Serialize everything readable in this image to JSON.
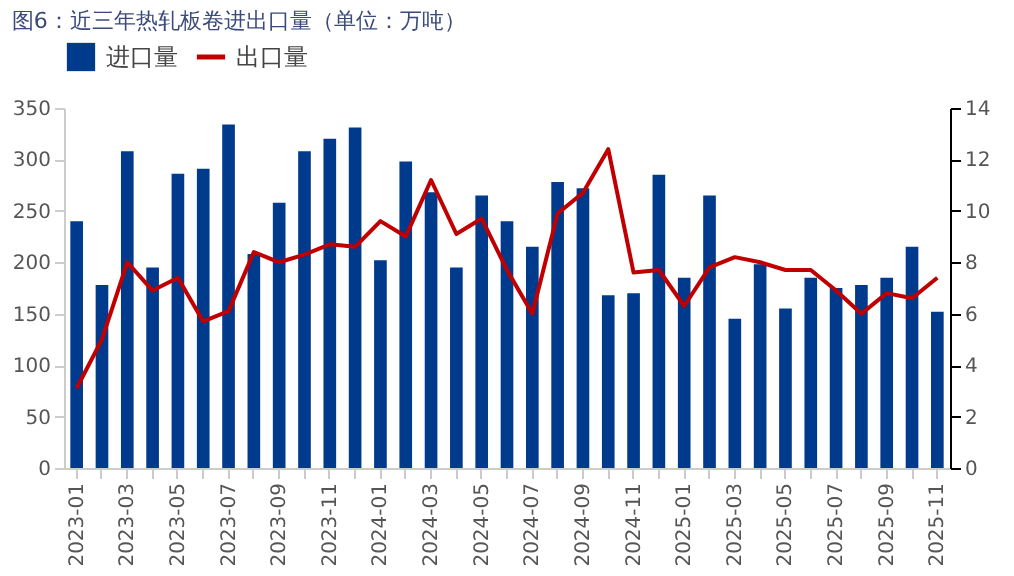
{
  "chart_data": {
    "type": "bar",
    "title": "图6：近三年热轧板卷进出口量（单位：万吨）",
    "categories": [
      "2023-01",
      null,
      "2023-03",
      null,
      "2023-05",
      null,
      "2023-07",
      null,
      "2023-09",
      null,
      "2023-11",
      null,
      "2024-01",
      null,
      "2024-03",
      null,
      "2024-05",
      null,
      "2024-07",
      null,
      "2024-09",
      null,
      "2024-11",
      null,
      "2025-01",
      null,
      "2025-03",
      null,
      "2025-05",
      null,
      "2025-07",
      null,
      "2025-09",
      null,
      "2025-11"
    ],
    "series": [
      {
        "name": "进口量",
        "color": "#003a8c",
        "values": [
          240,
          178,
          308,
          195,
          286,
          291,
          334,
          208,
          258,
          308,
          320,
          331,
          202,
          298,
          268,
          195,
          265,
          240,
          215,
          278,
          272,
          168,
          170,
          285,
          185,
          265,
          145,
          198,
          155,
          185,
          175,
          178,
          185,
          215,
          152
        ]
      },
      {
        "name": "出口量",
        "type": "line",
        "axis": "y2",
        "color": "#c00000",
        "values": [
          3.1,
          5.0,
          8.0,
          6.9,
          7.4,
          5.7,
          6.1,
          8.4,
          8.0,
          8.3,
          8.7,
          8.6,
          9.6,
          9.0,
          11.2,
          9.1,
          9.7,
          7.7,
          6.0,
          9.9,
          10.7,
          12.4,
          7.6,
          7.7,
          6.3,
          7.8,
          8.2,
          8.0,
          7.7,
          7.7,
          6.9,
          6.0,
          6.8,
          6.6,
          7.4
        ]
      }
    ],
    "ylim": [
      0,
      350
    ],
    "yticks": [
      0,
      50,
      100,
      150,
      200,
      250,
      300,
      350
    ],
    "y2lim": [
      0,
      14
    ],
    "y2ticks": [
      0,
      2,
      4,
      6,
      8,
      10,
      12,
      14
    ],
    "grid": false,
    "legend": "top"
  }
}
